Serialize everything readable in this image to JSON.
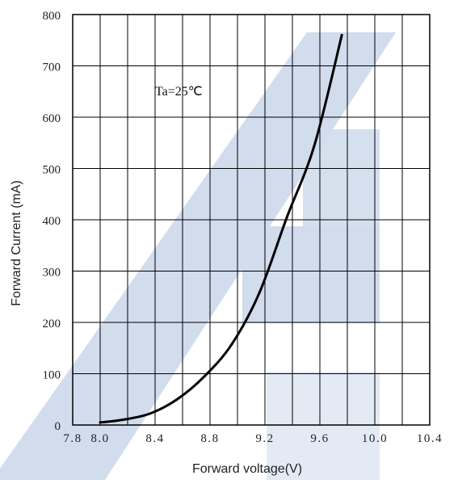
{
  "chart_data": {
    "type": "line",
    "title": "",
    "xlabel": "Forward voltage(V)",
    "ylabel": "Forward Current (mA)",
    "xlim": [
      7.8,
      10.4
    ],
    "ylim": [
      0,
      800
    ],
    "x_ticks": [
      "7.8",
      "8.0",
      "8.4",
      "8.8",
      "9.2",
      "9.6",
      "10.0",
      "10.4"
    ],
    "y_ticks": [
      "0",
      "100",
      "200",
      "300",
      "400",
      "500",
      "600",
      "700",
      "800"
    ],
    "grid": true,
    "annotation": "Ta=25℃",
    "series": [
      {
        "x": [
          8.0,
          8.16,
          8.36,
          8.56,
          8.76,
          8.96,
          9.16,
          9.36,
          9.56,
          9.76
        ],
        "y": [
          5,
          10,
          22,
          50,
          95,
          158,
          258,
          405,
          545,
          760
        ]
      }
    ]
  },
  "colors": {
    "grid": "#000000",
    "line": "#000000",
    "watermark": "#c7d4e8"
  },
  "watermark": "logo-watermark"
}
